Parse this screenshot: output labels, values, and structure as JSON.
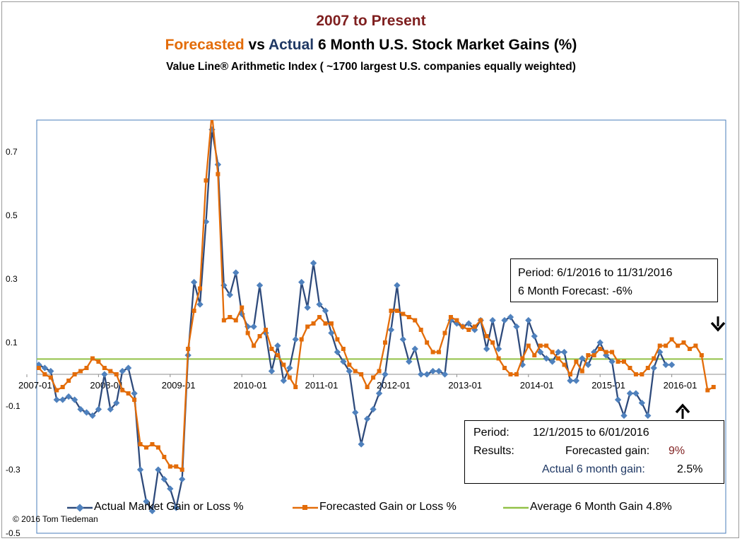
{
  "title": {
    "line1": "2007 to Present",
    "line2_forecasted": "Forecasted",
    "line2_vs": " vs ",
    "line2_actual": "Actual",
    "line2_rest": " 6 Month U.S. Stock Market Gains (%)",
    "line3": "Value Line® Arithmetic Index ( ~1700 largest U.S. companies equally weighted)"
  },
  "colors": {
    "actual": "#2e4a7b",
    "forecast": "#e36c09",
    "average": "#92c147",
    "title_red": "#7f1f1f",
    "plot_border": "#4a7ebb"
  },
  "legend": {
    "actual": "Actual Market Gain or Loss %",
    "forecast": "Forecasted Gain or Loss %",
    "average": "Average 6 Month Gain 4.8%"
  },
  "copyright": "©  2016 Tom Tiedeman",
  "box1": {
    "line1": "Period: 6/1/2016 to 11/31/2016",
    "line2": "6 Month Forecast: -6%"
  },
  "box2": {
    "period_label": "Period:",
    "period_value": "12/1/2015 to 6/01/2016",
    "results_label": "Results:",
    "forecast_label": "Forecasted gain:",
    "forecast_value": "9%",
    "actual_label": "Actual 6 month gain:",
    "actual_value": "2.5%"
  },
  "chart_data": {
    "type": "line",
    "title": "Forecasted vs Actual 6 Month U.S. Stock Market Gains (%)",
    "y_ticks": [
      "-0.5",
      "-0.3",
      "-0.1",
      "0.1",
      "0.3",
      "0.5",
      "0.7"
    ],
    "x_ticks": [
      "2007-01",
      "2008-01",
      "2009-01",
      "2010-01",
      "2011-01",
      "2012-01",
      "2013-01",
      "2014-01",
      "2015-01",
      "2016-01"
    ],
    "ylim": [
      -0.5,
      0.8
    ],
    "x_start": "2007-01",
    "average": 0.048,
    "series": [
      {
        "name": "Actual Market Gain or Loss %",
        "values": [
          0.02,
          0.02,
          0.03,
          0.02,
          0.01,
          -0.08,
          -0.08,
          -0.07,
          -0.08,
          -0.11,
          -0.12,
          -0.13,
          -0.11,
          0.0,
          -0.11,
          -0.09,
          0.01,
          0.02,
          -0.06,
          -0.3,
          -0.4,
          -0.43,
          -0.3,
          -0.33,
          -0.36,
          -0.42,
          -0.33,
          0.06,
          0.29,
          0.22,
          0.48,
          0.77,
          0.66,
          0.28,
          0.25,
          0.32,
          0.19,
          0.15,
          0.15,
          0.28,
          0.13,
          0.01,
          0.09,
          -0.02,
          0.02,
          0.11,
          0.29,
          0.21,
          0.35,
          0.22,
          0.2,
          0.13,
          0.07,
          0.04,
          0.01,
          -0.12,
          -0.22,
          -0.14,
          -0.11,
          -0.06,
          0.0,
          0.14,
          0.28,
          0.11,
          0.04,
          0.08,
          0.0,
          0.0,
          0.01,
          0.01,
          0.0,
          0.17,
          0.16,
          0.15,
          0.16,
          0.14,
          0.17,
          0.08,
          0.17,
          0.08,
          0.17,
          0.18,
          0.15,
          0.03,
          0.17,
          0.12,
          0.07,
          0.05,
          0.04,
          0.07,
          0.07,
          -0.02,
          -0.02,
          0.05,
          0.03,
          0.07,
          0.1,
          0.06,
          0.04,
          -0.08,
          -0.13,
          -0.06,
          -0.06,
          -0.09,
          -0.13,
          0.02,
          0.07,
          0.03,
          0.03,
          null,
          null,
          null,
          null,
          null,
          null
        ]
      },
      {
        "name": "Forecasted Gain or Loss %",
        "values": [
          0.03,
          0.03,
          0.02,
          0.0,
          -0.01,
          -0.05,
          -0.04,
          -0.02,
          0.0,
          0.01,
          0.02,
          0.05,
          0.04,
          0.02,
          0.01,
          0.0,
          -0.05,
          -0.06,
          -0.08,
          -0.22,
          -0.23,
          -0.22,
          -0.23,
          -0.26,
          -0.29,
          -0.29,
          -0.3,
          0.08,
          0.2,
          0.27,
          0.61,
          0.82,
          0.63,
          0.17,
          0.18,
          0.17,
          0.21,
          0.13,
          0.09,
          0.12,
          0.14,
          0.08,
          0.06,
          0.03,
          -0.01,
          -0.04,
          0.11,
          0.15,
          0.16,
          0.18,
          0.16,
          0.16,
          0.11,
          0.08,
          0.03,
          0.01,
          0.0,
          -0.04,
          -0.01,
          0.01,
          0.1,
          0.2,
          0.2,
          0.19,
          0.18,
          0.17,
          0.14,
          0.1,
          0.07,
          0.07,
          0.13,
          0.18,
          0.17,
          0.15,
          0.14,
          0.15,
          0.17,
          0.12,
          0.1,
          0.05,
          0.02,
          0.0,
          0.0,
          0.05,
          0.09,
          0.06,
          0.09,
          0.09,
          0.07,
          0.05,
          0.03,
          0.0,
          0.04,
          0.01,
          0.06,
          0.06,
          0.08,
          0.07,
          0.07,
          0.04,
          0.04,
          0.02,
          0.0,
          0.0,
          0.02,
          0.05,
          0.09,
          0.09,
          0.11,
          0.09,
          0.1,
          0.08,
          0.09,
          0.06,
          -0.05,
          -0.04
        ]
      }
    ]
  }
}
